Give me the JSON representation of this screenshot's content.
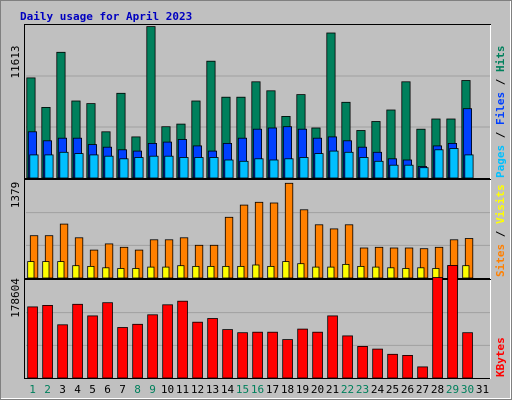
{
  "colors": {
    "background": "#c0c0c0",
    "plot_bg": "#c0c0c0",
    "grid": "#a0a0a0",
    "title": "#0000c0",
    "hits": "#00805c",
    "files": "#0040ff",
    "pages": "#00c0ff",
    "visits": "#ff8000",
    "sites": "#ffff00",
    "kbytes": "#ff0000",
    "day_weekday": "#000000",
    "day_weekend": "#00805c"
  },
  "chart_data": [
    {
      "type": "bar",
      "title": "Daily usage for April 2023",
      "ylabel_max": "11613",
      "ymax": 11613,
      "legend": [
        "Pages",
        "Files",
        "Hits"
      ],
      "x": [
        1,
        2,
        3,
        4,
        5,
        6,
        7,
        8,
        9,
        10,
        11,
        12,
        13,
        14,
        15,
        16,
        17,
        18,
        19,
        20,
        21,
        22,
        23,
        24,
        25,
        26,
        27,
        28,
        29,
        30,
        31
      ],
      "weekend_days": [
        1,
        2,
        8,
        9,
        15,
        16,
        22,
        23,
        29,
        30
      ],
      "series": [
        {
          "name": "Hits",
          "color_key": "hits",
          "values": [
            7800,
            5500,
            9800,
            6000,
            5800,
            3600,
            6600,
            3200,
            11800,
            4000,
            4200,
            6000,
            9100,
            6300,
            6300,
            7500,
            6800,
            4800,
            6500,
            3900,
            11300,
            5900,
            3700,
            4400,
            5300,
            7500,
            3800,
            4600,
            4600,
            7600,
            0
          ]
        },
        {
          "name": "Files",
          "color_key": "files",
          "values": [
            3600,
            2900,
            3100,
            3100,
            2600,
            2400,
            2200,
            2100,
            2700,
            2800,
            3000,
            2500,
            2100,
            2700,
            3100,
            3800,
            3900,
            4000,
            3800,
            3100,
            3200,
            2900,
            2400,
            2000,
            1500,
            1400,
            900,
            2500,
            2700,
            5400,
            0
          ]
        },
        {
          "name": "Pages",
          "color_key": "pages",
          "values": [
            1800,
            1800,
            2000,
            1900,
            1800,
            1700,
            1500,
            1600,
            1700,
            1700,
            1600,
            1600,
            1600,
            1400,
            1300,
            1500,
            1400,
            1500,
            1600,
            1900,
            2100,
            2000,
            1600,
            1300,
            1000,
            1000,
            800,
            2200,
            2300,
            1800,
            0
          ]
        }
      ]
    },
    {
      "type": "bar",
      "ylabel_max": "1379",
      "ymax": 1379,
      "legend": [
        "Sites",
        "Visits"
      ],
      "x": [
        1,
        2,
        3,
        4,
        5,
        6,
        7,
        8,
        9,
        10,
        11,
        12,
        13,
        14,
        15,
        16,
        17,
        18,
        19,
        20,
        21,
        22,
        23,
        24,
        25,
        26,
        27,
        28,
        29,
        30,
        31
      ],
      "series": [
        {
          "name": "Visits",
          "color_key": "visits",
          "values": [
            620,
            620,
            790,
            590,
            410,
            500,
            450,
            410,
            560,
            560,
            590,
            480,
            480,
            890,
            1070,
            1110,
            1100,
            1390,
            1000,
            780,
            720,
            780,
            440,
            450,
            440,
            440,
            430,
            450,
            560,
            580,
            0
          ]
        },
        {
          "name": "Sites",
          "color_key": "sites",
          "values": [
            240,
            240,
            240,
            180,
            170,
            150,
            140,
            140,
            160,
            160,
            180,
            170,
            170,
            170,
            170,
            190,
            170,
            240,
            210,
            160,
            160,
            200,
            170,
            160,
            150,
            140,
            150,
            140,
            170,
            180,
            0
          ]
        }
      ]
    },
    {
      "type": "bar",
      "ylabel_max": "178604",
      "ymax": 178604,
      "legend": [
        "KBytes"
      ],
      "x": [
        1,
        2,
        3,
        4,
        5,
        6,
        7,
        8,
        9,
        10,
        11,
        12,
        13,
        14,
        15,
        16,
        17,
        18,
        19,
        20,
        21,
        22,
        23,
        24,
        25,
        26,
        27,
        28,
        29,
        30,
        31
      ],
      "series": [
        {
          "name": "KBytes",
          "color_key": "kbytes",
          "values": [
            135000,
            138000,
            101000,
            140000,
            118000,
            143000,
            96000,
            102000,
            120000,
            139000,
            146000,
            106000,
            113000,
            92000,
            86000,
            87000,
            87000,
            73000,
            93000,
            87000,
            118000,
            80000,
            60000,
            55000,
            45000,
            43000,
            21000,
            191000,
            214000,
            86000,
            0
          ]
        }
      ]
    }
  ]
}
